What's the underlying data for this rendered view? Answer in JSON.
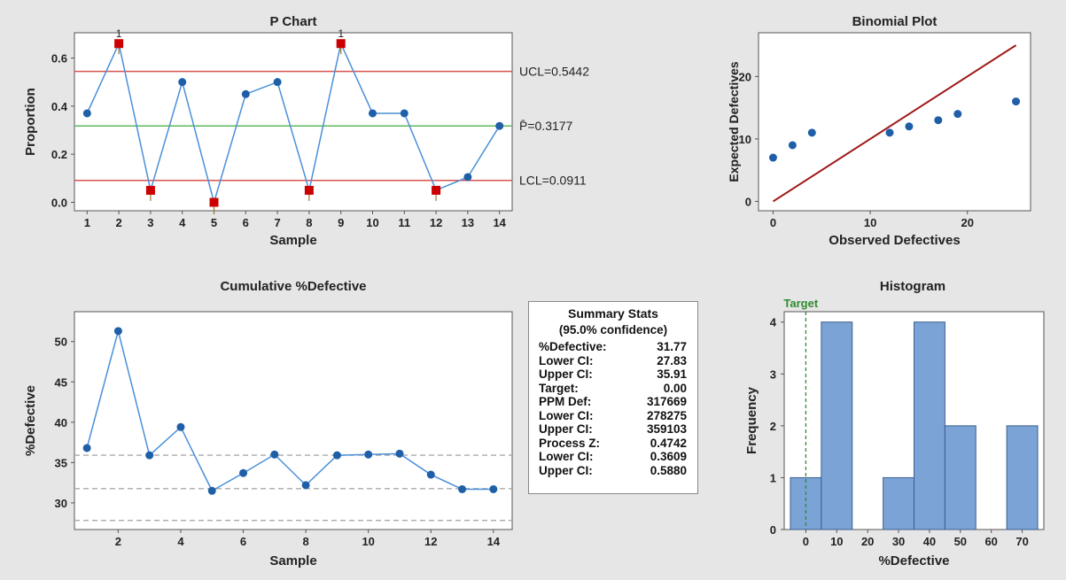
{
  "chart_data": [
    {
      "type": "line",
      "title": "P Chart",
      "xlabel": "Sample",
      "ylabel": "Proportion",
      "x": [
        1,
        2,
        3,
        4,
        5,
        6,
        7,
        8,
        9,
        10,
        11,
        12,
        13,
        14
      ],
      "values": [
        0.37,
        0.66,
        0.05,
        0.5,
        0.0,
        0.45,
        0.5,
        0.05,
        0.66,
        0.37,
        0.37,
        0.05,
        0.105,
        0.3177
      ],
      "flagged": [
        2,
        3,
        5,
        8,
        9,
        12
      ],
      "flag_labels": [
        {
          "sample": 2,
          "text": "1"
        },
        {
          "sample": 9,
          "text": "1"
        }
      ],
      "xticks": [
        "1",
        "2",
        "3",
        "4",
        "5",
        "6",
        "7",
        "8",
        "9",
        "10",
        "11",
        "12",
        "13",
        "14"
      ],
      "yticks": [
        "0.0",
        "0.2",
        "0.4",
        "0.6"
      ],
      "ylim": [
        -0.035,
        0.705
      ],
      "limits": [
        {
          "name": "UCL",
          "value": 0.5442,
          "label": "UCL=0.5442",
          "color": "#d9534f"
        },
        {
          "name": "P",
          "value": 0.3177,
          "label": "P̄=0.3177",
          "color": "#5cb85c"
        },
        {
          "name": "LCL",
          "value": 0.0911,
          "label": "LCL=0.0911",
          "color": "#d9534f"
        }
      ],
      "line_color": "#4a90d9",
      "point_color": "#1f5fa8",
      "flag_color": "#cc0000"
    },
    {
      "type": "scatter",
      "title": "Binomial Plot",
      "xlabel": "Observed Defectives",
      "ylabel": "Expected Defectives",
      "points": [
        [
          0,
          7
        ],
        [
          2,
          9
        ],
        [
          4,
          11
        ],
        [
          12,
          11
        ],
        [
          14,
          12
        ],
        [
          17,
          13
        ],
        [
          19,
          14
        ],
        [
          25,
          16
        ]
      ],
      "reference_line": [
        [
          0,
          0
        ],
        [
          25,
          25
        ]
      ],
      "xticks": [
        "0",
        "10",
        "20"
      ],
      "yticks": [
        "0",
        "10",
        "20"
      ],
      "xlim": [
        -1.5,
        26.5
      ],
      "ylim": [
        -1.5,
        27
      ],
      "point_color": "#1f5fa8",
      "line_color": "#a01818"
    },
    {
      "type": "line",
      "title": "Cumulative %Defective",
      "xlabel": "Sample",
      "ylabel": "%Defective",
      "x": [
        1,
        2,
        3,
        4,
        5,
        6,
        7,
        8,
        9,
        10,
        11,
        12,
        13,
        14
      ],
      "values": [
        36.8,
        51.3,
        35.9,
        39.4,
        31.5,
        33.7,
        36.0,
        32.2,
        35.9,
        36.0,
        36.1,
        33.5,
        31.7,
        31.7
      ],
      "xticks": [
        "2",
        "4",
        "6",
        "8",
        "10",
        "12",
        "14"
      ],
      "yticks": [
        "30",
        "35",
        "40",
        "45",
        "50"
      ],
      "xlim": [
        0.6,
        14.6
      ],
      "ylim": [
        26.7,
        53.7
      ],
      "reference_lines": [
        35.91,
        31.77,
        27.83
      ],
      "line_color": "#4a90d9",
      "point_color": "#1f5fa8",
      "ref_color": "#aaaaaa"
    },
    {
      "type": "bar",
      "title": "Histogram",
      "xlabel": "%Defective",
      "ylabel": "Frequency",
      "bins": [
        {
          "center": 0,
          "count": 1
        },
        {
          "center": 10,
          "count": 4
        },
        {
          "center": 20,
          "count": 0
        },
        {
          "center": 30,
          "count": 1
        },
        {
          "center": 40,
          "count": 4
        },
        {
          "center": 50,
          "count": 2
        },
        {
          "center": 60,
          "count": 0
        },
        {
          "center": 70,
          "count": 2
        }
      ],
      "bin_width": 10,
      "xticks": [
        "0",
        "10",
        "20",
        "30",
        "40",
        "50",
        "60",
        "70"
      ],
      "yticks": [
        "0",
        "1",
        "2",
        "3",
        "4"
      ],
      "xlim": [
        -7,
        77
      ],
      "ylim": [
        0,
        4.2
      ],
      "target": {
        "value": 0,
        "label": "Target",
        "color": "#2e8b2e"
      },
      "bar_color": "#7ba3d6",
      "bar_edge": "#3a5f8f"
    }
  ],
  "summary_stats": {
    "title": "Summary Stats",
    "subtitle": "(95.0% confidence)",
    "rows": [
      {
        "label": "%Defective:",
        "value": "31.77"
      },
      {
        "label": "Lower CI:",
        "value": "27.83"
      },
      {
        "label": "Upper CI:",
        "value": "35.91"
      },
      {
        "label": "Target:",
        "value": "0.00"
      },
      {
        "label": "PPM Def:",
        "value": "317669"
      },
      {
        "label": "Lower CI:",
        "value": "278275"
      },
      {
        "label": "Upper CI:",
        "value": "359103"
      },
      {
        "label": "Process Z:",
        "value": "0.4742"
      },
      {
        "label": "Lower CI:",
        "value": "0.3609"
      },
      {
        "label": "Upper CI:",
        "value": "0.5880"
      }
    ]
  }
}
